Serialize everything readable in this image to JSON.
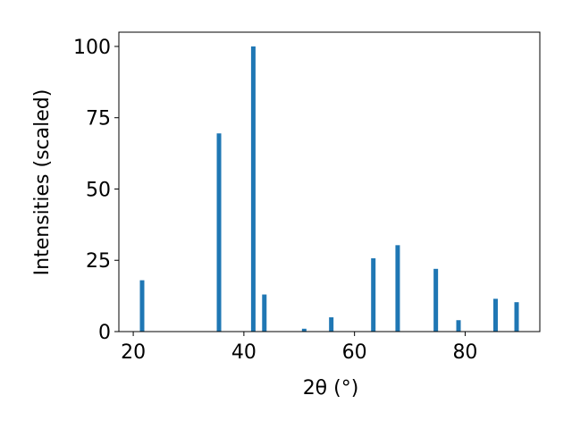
{
  "chart_data": {
    "type": "bar",
    "xlabel": "2θ (°)",
    "ylabel": "Intensities (scaled)",
    "x": [
      21.6,
      35.5,
      41.7,
      43.7,
      50.9,
      55.8,
      63.4,
      67.8,
      74.7,
      78.8,
      85.5,
      89.3
    ],
    "values": [
      18,
      69.5,
      100,
      13,
      1,
      5,
      25.7,
      30.3,
      22,
      4,
      11.5,
      10.3
    ],
    "color": "#1f77b4",
    "xlim": [
      17.4,
      93.5
    ],
    "xticks": [
      20,
      40,
      60,
      80
    ],
    "ylim": [
      0,
      105
    ],
    "yticks": [
      0,
      25,
      50,
      75,
      100
    ],
    "grid": false
  }
}
